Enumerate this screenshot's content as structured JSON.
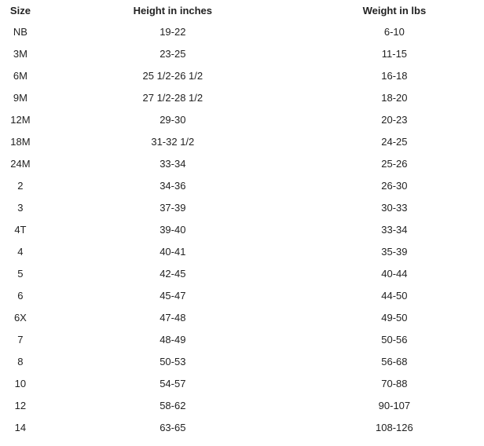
{
  "table": {
    "headers": [
      "Size",
      "Height in inches",
      "Weight in lbs"
    ],
    "rows": [
      [
        "NB",
        "19-22",
        "6-10"
      ],
      [
        "3M",
        "23-25",
        "11-15"
      ],
      [
        "6M",
        "25 1/2-26 1/2",
        "16-18"
      ],
      [
        "9M",
        "27 1/2-28 1/2",
        "18-20"
      ],
      [
        "12M",
        "29-30",
        "20-23"
      ],
      [
        "18M",
        "31-32 1/2",
        "24-25"
      ],
      [
        "24M",
        "33-34",
        "25-26"
      ],
      [
        "2",
        "34-36",
        "26-30"
      ],
      [
        "3",
        "37-39",
        "30-33"
      ],
      [
        "4T",
        "39-40",
        "33-34"
      ],
      [
        "4",
        "40-41",
        "35-39"
      ],
      [
        "5",
        "42-45",
        "40-44"
      ],
      [
        "6",
        "45-47",
        "44-50"
      ],
      [
        "6X",
        "47-48",
        "49-50"
      ],
      [
        "7",
        "48-49",
        "50-56"
      ],
      [
        "8",
        "50-53",
        "56-68"
      ],
      [
        "10",
        "54-57",
        "70-88"
      ],
      [
        "12",
        "58-62",
        "90-107"
      ],
      [
        "14",
        "63-65",
        "108-126"
      ]
    ]
  }
}
